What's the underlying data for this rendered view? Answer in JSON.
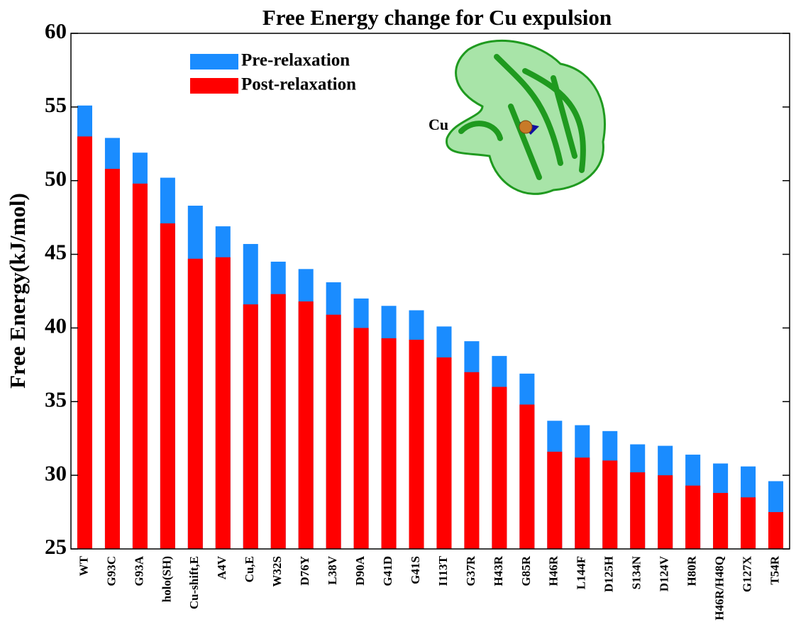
{
  "chart_data": {
    "type": "bar",
    "title": "Free Energy change for Cu expulsion",
    "ylabel": "Free Energy(kJ/mol)",
    "annotation": "Cu",
    "categories": [
      "WT",
      "G93C",
      "G93A",
      "holo(SH)",
      "Cu-shift,E",
      "A4V",
      "Cu,E",
      "W32S",
      "D76Y",
      "L38V",
      "D90A",
      "G41D",
      "G41S",
      "I113T",
      "G37R",
      "H43R",
      "G85R",
      "H46R",
      "L144F",
      "D125H",
      "S134N",
      "D124V",
      "H80R",
      "H46R/H48Q",
      "G127X",
      "T54R"
    ],
    "series": [
      {
        "name": "Pre-relaxation",
        "color": "#1a8cff",
        "values": [
          55.1,
          52.9,
          51.9,
          50.2,
          48.3,
          46.9,
          45.7,
          44.5,
          44.0,
          43.1,
          42.0,
          41.5,
          41.2,
          40.1,
          39.1,
          38.1,
          36.9,
          33.7,
          33.4,
          33.0,
          32.1,
          32.0,
          31.4,
          30.8,
          30.6,
          29.6
        ]
      },
      {
        "name": "Post-relaxation",
        "color": "#ff0000",
        "values": [
          53.0,
          50.8,
          49.8,
          47.1,
          44.7,
          44.8,
          41.6,
          42.3,
          41.8,
          40.9,
          40.0,
          39.3,
          39.2,
          38.0,
          37.0,
          36.0,
          34.8,
          31.6,
          31.2,
          31.0,
          30.2,
          30.0,
          29.3,
          28.8,
          28.5,
          27.5
        ]
      }
    ],
    "ylim": [
      25,
      60
    ],
    "yticks": [
      25,
      30,
      35,
      40,
      45,
      50,
      55,
      60
    ],
    "grid": false,
    "legend": "upper left",
    "overlay": true
  }
}
